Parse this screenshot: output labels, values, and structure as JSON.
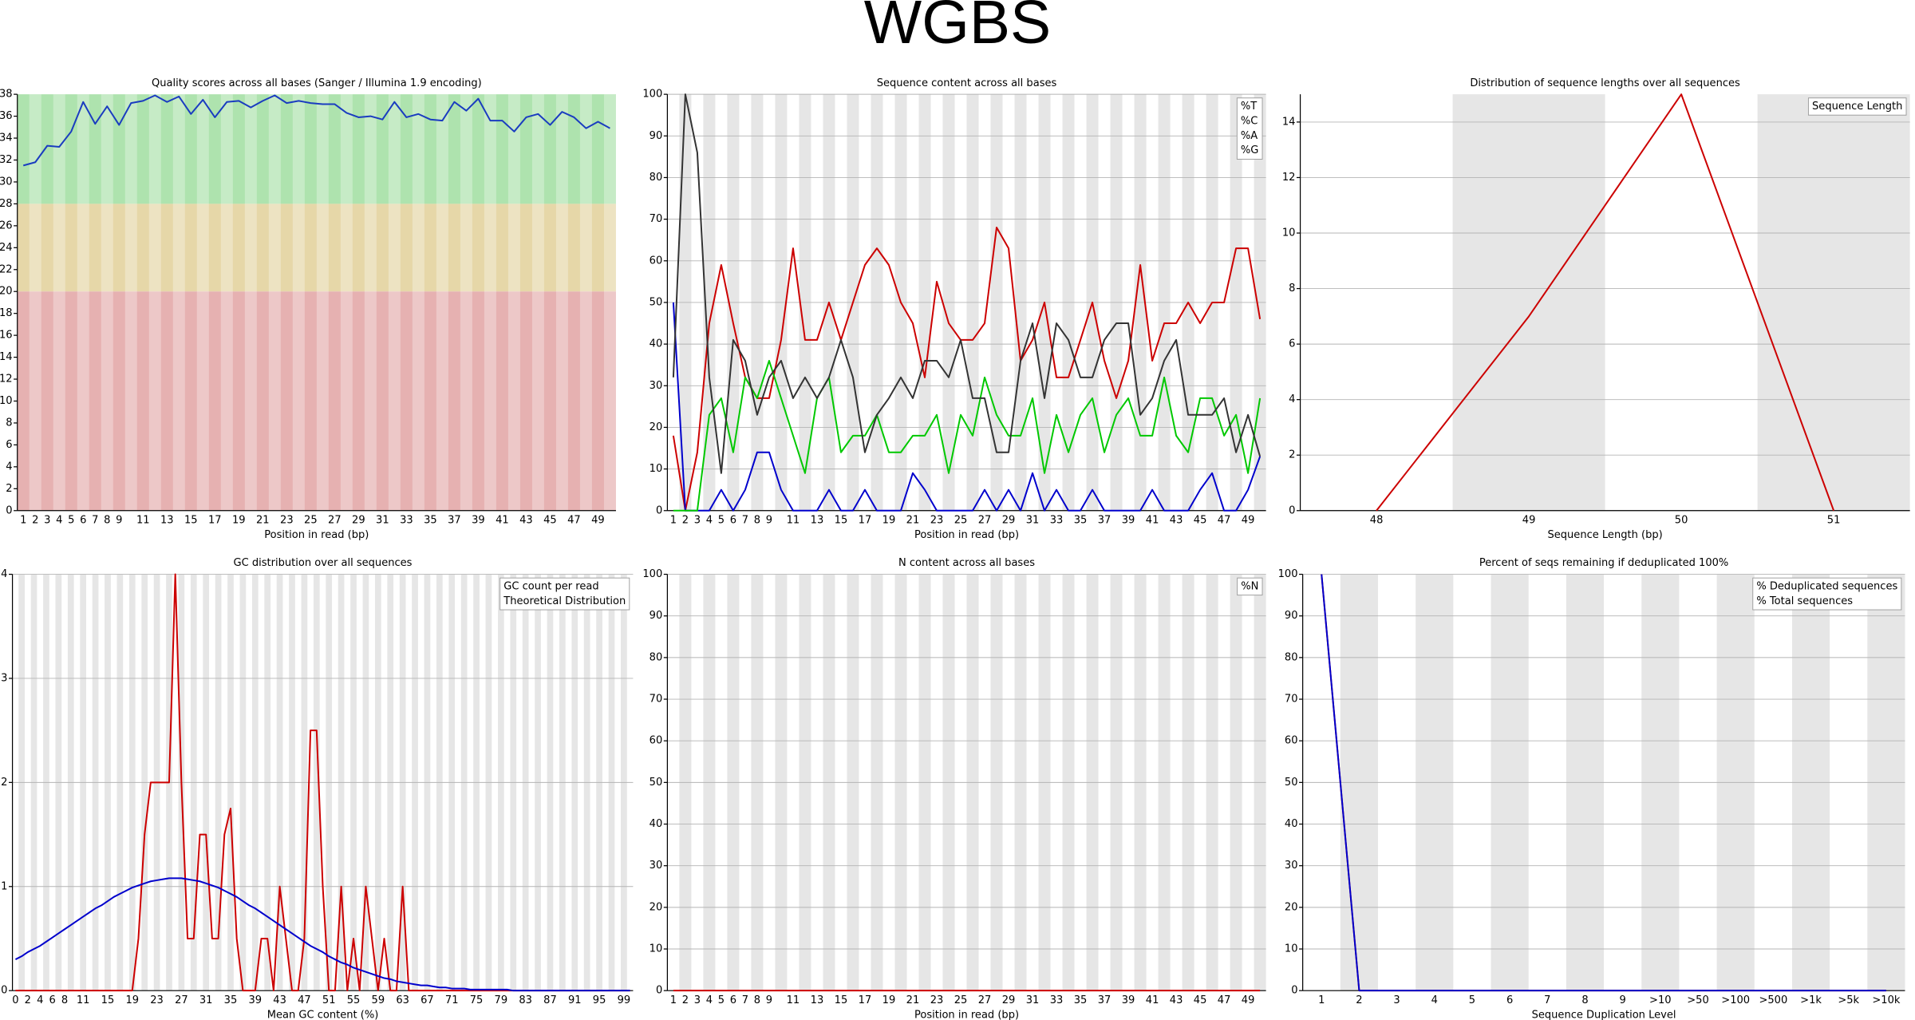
{
  "title": "WGBS",
  "chart_data": [
    {
      "type": "line",
      "title": "Quality scores across all bases (Sanger / Illumina 1.9 encoding)",
      "x_label": "Position in read (bp)",
      "categories": [
        1,
        2,
        3,
        4,
        5,
        6,
        7,
        8,
        9,
        null,
        11,
        null,
        13,
        null,
        15,
        null,
        17,
        null,
        19,
        null,
        21,
        null,
        23,
        null,
        25,
        null,
        27,
        null,
        29,
        null,
        31,
        null,
        33,
        null,
        35,
        null,
        37,
        null,
        39,
        null,
        41,
        null,
        43,
        null,
        45,
        null,
        47,
        null,
        49,
        null
      ],
      "series": [
        {
          "color": "#1a3cc0",
          "values": [
            31.5,
            31.8,
            33.3,
            33.2,
            34.6,
            37.3,
            35.3,
            36.9,
            35.2,
            37.2,
            37.4,
            37.9,
            37.3,
            37.8,
            36.2,
            37.5,
            35.9,
            37.3,
            37.4,
            36.8,
            37.4,
            37.9,
            37.2,
            37.4,
            37.2,
            37.1,
            37.1,
            36.3,
            35.9,
            36.0,
            35.7,
            37.3,
            35.9,
            36.2,
            35.7,
            35.6,
            37.3,
            36.5,
            37.6,
            35.6,
            35.6,
            34.6,
            35.9,
            36.2,
            35.2,
            36.4,
            35.9,
            34.9,
            35.5,
            34.9
          ]
        }
      ],
      "zones": [
        {
          "from": 28,
          "to": 38,
          "color": "#aee3ae"
        },
        {
          "from": 20,
          "to": 28,
          "color": "#e6d7a8"
        },
        {
          "from": 0,
          "to": 20,
          "color": "#e6b1b1"
        }
      ],
      "ylim": [
        0,
        38
      ],
      "yticks": [
        0,
        2,
        4,
        6,
        8,
        10,
        12,
        14,
        16,
        18,
        20,
        22,
        24,
        26,
        28,
        30,
        32,
        34,
        36,
        38
      ],
      "grid": false
    },
    {
      "type": "line",
      "title": "Sequence content across all bases",
      "x_label": "Position in read (bp)",
      "categories": [
        1,
        2,
        3,
        4,
        5,
        6,
        7,
        8,
        9,
        null,
        11,
        null,
        13,
        null,
        15,
        null,
        17,
        null,
        19,
        null,
        21,
        null,
        23,
        null,
        25,
        null,
        27,
        null,
        29,
        null,
        31,
        null,
        33,
        null,
        35,
        null,
        37,
        null,
        39,
        null,
        41,
        null,
        43,
        null,
        45,
        null,
        47,
        null,
        49,
        null
      ],
      "series": [
        {
          "name": "%T",
          "color": "#cc0000",
          "values": [
            18,
            0,
            14,
            45,
            59,
            45,
            32,
            27,
            27,
            41,
            63,
            41,
            41,
            50,
            41,
            50,
            59,
            63,
            59,
            50,
            45,
            32,
            55,
            45,
            41,
            41,
            45,
            68,
            63,
            36,
            41,
            50,
            32,
            32,
            41,
            50,
            36,
            27,
            36,
            59,
            36,
            45,
            45,
            50,
            45,
            50,
            50,
            63,
            63,
            46
          ]
        },
        {
          "name": "%C",
          "color": "#0000cc",
          "values": [
            50,
            0,
            0,
            0,
            5,
            0,
            5,
            14,
            14,
            5,
            0,
            0,
            0,
            5,
            0,
            0,
            5,
            0,
            0,
            0,
            9,
            5,
            0,
            0,
            0,
            0,
            5,
            0,
            5,
            0,
            9,
            0,
            5,
            0,
            0,
            5,
            0,
            0,
            0,
            0,
            5,
            0,
            0,
            0,
            5,
            9,
            0,
            0,
            5,
            13
          ]
        },
        {
          "name": "%A",
          "color": "#00c800",
          "values": [
            0,
            0,
            0,
            23,
            27,
            14,
            32,
            27,
            36,
            27,
            18,
            9,
            27,
            32,
            14,
            18,
            18,
            23,
            14,
            14,
            18,
            18,
            23,
            9,
            23,
            18,
            32,
            23,
            18,
            18,
            27,
            9,
            23,
            14,
            23,
            27,
            14,
            23,
            27,
            18,
            18,
            32,
            18,
            14,
            27,
            27,
            18,
            23,
            9,
            27
          ]
        },
        {
          "name": "%G",
          "color": "#333333",
          "values": [
            32,
            100,
            86,
            32,
            9,
            41,
            36,
            23,
            32,
            36,
            27,
            32,
            27,
            32,
            41,
            32,
            14,
            23,
            27,
            32,
            27,
            36,
            36,
            32,
            41,
            27,
            27,
            14,
            14,
            36,
            45,
            27,
            45,
            41,
            32,
            32,
            41,
            45,
            45,
            23,
            27,
            36,
            41,
            23,
            23,
            23,
            27,
            14,
            23,
            13
          ]
        }
      ],
      "ylim": [
        0,
        100
      ],
      "yticks": [
        0,
        10,
        20,
        30,
        40,
        50,
        60,
        70,
        80,
        90,
        100
      ],
      "grid": true
    },
    {
      "type": "line",
      "title": "Distribution of sequence lengths over all sequences",
      "x_label": "Sequence Length (bp)",
      "categories": [
        48,
        49,
        50,
        51
      ],
      "series": [
        {
          "name": "Sequence Length",
          "color": "#cc0000",
          "values": [
            0,
            7,
            15,
            0
          ]
        }
      ],
      "ylim": [
        0,
        15
      ],
      "yticks": [
        0,
        2,
        4,
        6,
        8,
        10,
        12,
        14
      ],
      "grid": true
    },
    {
      "type": "line",
      "title": "GC distribution over all sequences",
      "x_label": "Mean GC content (%)",
      "categories": [
        0,
        null,
        2,
        null,
        4,
        null,
        6,
        null,
        8,
        null,
        null,
        11,
        null,
        null,
        null,
        15,
        null,
        null,
        null,
        19,
        null,
        null,
        null,
        23,
        null,
        null,
        null,
        27,
        null,
        null,
        null,
        31,
        null,
        null,
        null,
        35,
        null,
        null,
        null,
        39,
        null,
        null,
        null,
        43,
        null,
        null,
        null,
        47,
        null,
        null,
        null,
        51,
        null,
        null,
        null,
        55,
        null,
        null,
        null,
        59,
        null,
        null,
        null,
        63,
        null,
        null,
        null,
        67,
        null,
        null,
        null,
        71,
        null,
        null,
        null,
        75,
        null,
        null,
        null,
        79,
        null,
        null,
        null,
        83,
        null,
        null,
        null,
        87,
        null,
        null,
        null,
        91,
        null,
        null,
        null,
        95,
        null,
        null,
        null,
        99,
        null
      ],
      "series": [
        {
          "name": "GC count per read",
          "color": "#cc0000",
          "values": [
            0,
            0,
            0,
            0,
            0,
            0,
            0,
            0,
            0,
            0,
            0,
            0,
            0,
            0,
            0,
            0,
            0,
            0,
            0,
            0,
            0.5,
            1.5,
            2,
            2,
            2,
            2,
            4,
            2,
            0.5,
            0.5,
            1.5,
            1.5,
            0.5,
            0.5,
            1.5,
            1.75,
            0.5,
            0,
            0,
            0,
            0.5,
            0.5,
            0,
            1,
            0.5,
            0,
            0,
            0.5,
            2.5,
            2.5,
            1,
            0,
            0,
            1,
            0,
            0.5,
            0,
            1,
            0.5,
            0,
            0.5,
            0,
            0,
            1,
            0,
            0,
            0,
            0,
            0,
            0,
            0,
            0,
            0,
            0,
            0,
            0,
            0,
            0,
            0,
            0,
            0,
            0,
            0,
            0,
            0,
            0,
            0,
            0,
            0,
            0,
            0,
            0,
            0,
            0,
            0,
            0,
            0,
            0,
            0,
            0,
            0
          ]
        },
        {
          "name": "Theoretical Distribution",
          "color": "#0000cc",
          "values": [
            0.3,
            0.33,
            0.37,
            0.4,
            0.43,
            0.47,
            0.51,
            0.55,
            0.59,
            0.63,
            0.67,
            0.71,
            0.75,
            0.79,
            0.82,
            0.86,
            0.9,
            0.93,
            0.96,
            0.99,
            1.01,
            1.03,
            1.05,
            1.06,
            1.07,
            1.08,
            1.08,
            1.08,
            1.07,
            1.06,
            1.05,
            1.03,
            1.01,
            0.99,
            0.96,
            0.93,
            0.9,
            0.86,
            0.82,
            0.79,
            0.75,
            0.71,
            0.67,
            0.63,
            0.59,
            0.55,
            0.51,
            0.47,
            0.43,
            0.4,
            0.37,
            0.33,
            0.3,
            0.27,
            0.25,
            0.22,
            0.2,
            0.18,
            0.16,
            0.14,
            0.12,
            0.11,
            0.09,
            0.08,
            0.07,
            0.06,
            0.05,
            0.05,
            0.04,
            0.03,
            0.03,
            0.02,
            0.02,
            0.02,
            0.01,
            0.01,
            0.01,
            0.01,
            0.01,
            0.01,
            0.01,
            0,
            0,
            0,
            0,
            0,
            0,
            0,
            0,
            0,
            0,
            0,
            0,
            0,
            0,
            0,
            0,
            0,
            0,
            0,
            0
          ]
        }
      ],
      "ylim": [
        0,
        4
      ],
      "yticks": [
        0,
        1,
        2,
        3,
        4
      ],
      "grid": true
    },
    {
      "type": "line",
      "title": "N content across all bases",
      "x_label": "Position in read (bp)",
      "categories": [
        1,
        2,
        3,
        4,
        5,
        6,
        7,
        8,
        9,
        null,
        11,
        null,
        13,
        null,
        15,
        null,
        17,
        null,
        19,
        null,
        21,
        null,
        23,
        null,
        25,
        null,
        27,
        null,
        29,
        null,
        31,
        null,
        33,
        null,
        35,
        null,
        37,
        null,
        39,
        null,
        41,
        null,
        43,
        null,
        45,
        null,
        47,
        null,
        49,
        null
      ],
      "series": [
        {
          "name": "%N",
          "color": "#cc0000",
          "values": [
            0,
            0,
            0,
            0,
            0,
            0,
            0,
            0,
            0,
            0,
            0,
            0,
            0,
            0,
            0,
            0,
            0,
            0,
            0,
            0,
            0,
            0,
            0,
            0,
            0,
            0,
            0,
            0,
            0,
            0,
            0,
            0,
            0,
            0,
            0,
            0,
            0,
            0,
            0,
            0,
            0,
            0,
            0,
            0,
            0,
            0,
            0,
            0,
            0,
            0
          ]
        }
      ],
      "ylim": [
        0,
        100
      ],
      "yticks": [
        0,
        10,
        20,
        30,
        40,
        50,
        60,
        70,
        80,
        90,
        100
      ],
      "grid": true
    },
    {
      "type": "line",
      "title": "Percent of seqs remaining if deduplicated 100%",
      "x_label": "Sequence Duplication Level",
      "categories": [
        1,
        2,
        3,
        4,
        5,
        6,
        7,
        8,
        9,
        ">10",
        ">50",
        ">100",
        ">500",
        ">1k",
        ">5k",
        ">10k"
      ],
      "series": [
        {
          "name": "% Deduplicated sequences",
          "color": "#cc0000",
          "values": [
            100,
            0,
            0,
            0,
            0,
            0,
            0,
            0,
            0,
            0,
            0,
            0,
            0,
            0,
            0,
            0
          ]
        },
        {
          "name": "% Total sequences",
          "color": "#0000cc",
          "values": [
            100,
            0,
            0,
            0,
            0,
            0,
            0,
            0,
            0,
            0,
            0,
            0,
            0,
            0,
            0,
            0
          ]
        }
      ],
      "ylim": [
        0,
        100
      ],
      "yticks": [
        0,
        10,
        20,
        30,
        40,
        50,
        60,
        70,
        80,
        90,
        100
      ],
      "grid": true
    }
  ]
}
